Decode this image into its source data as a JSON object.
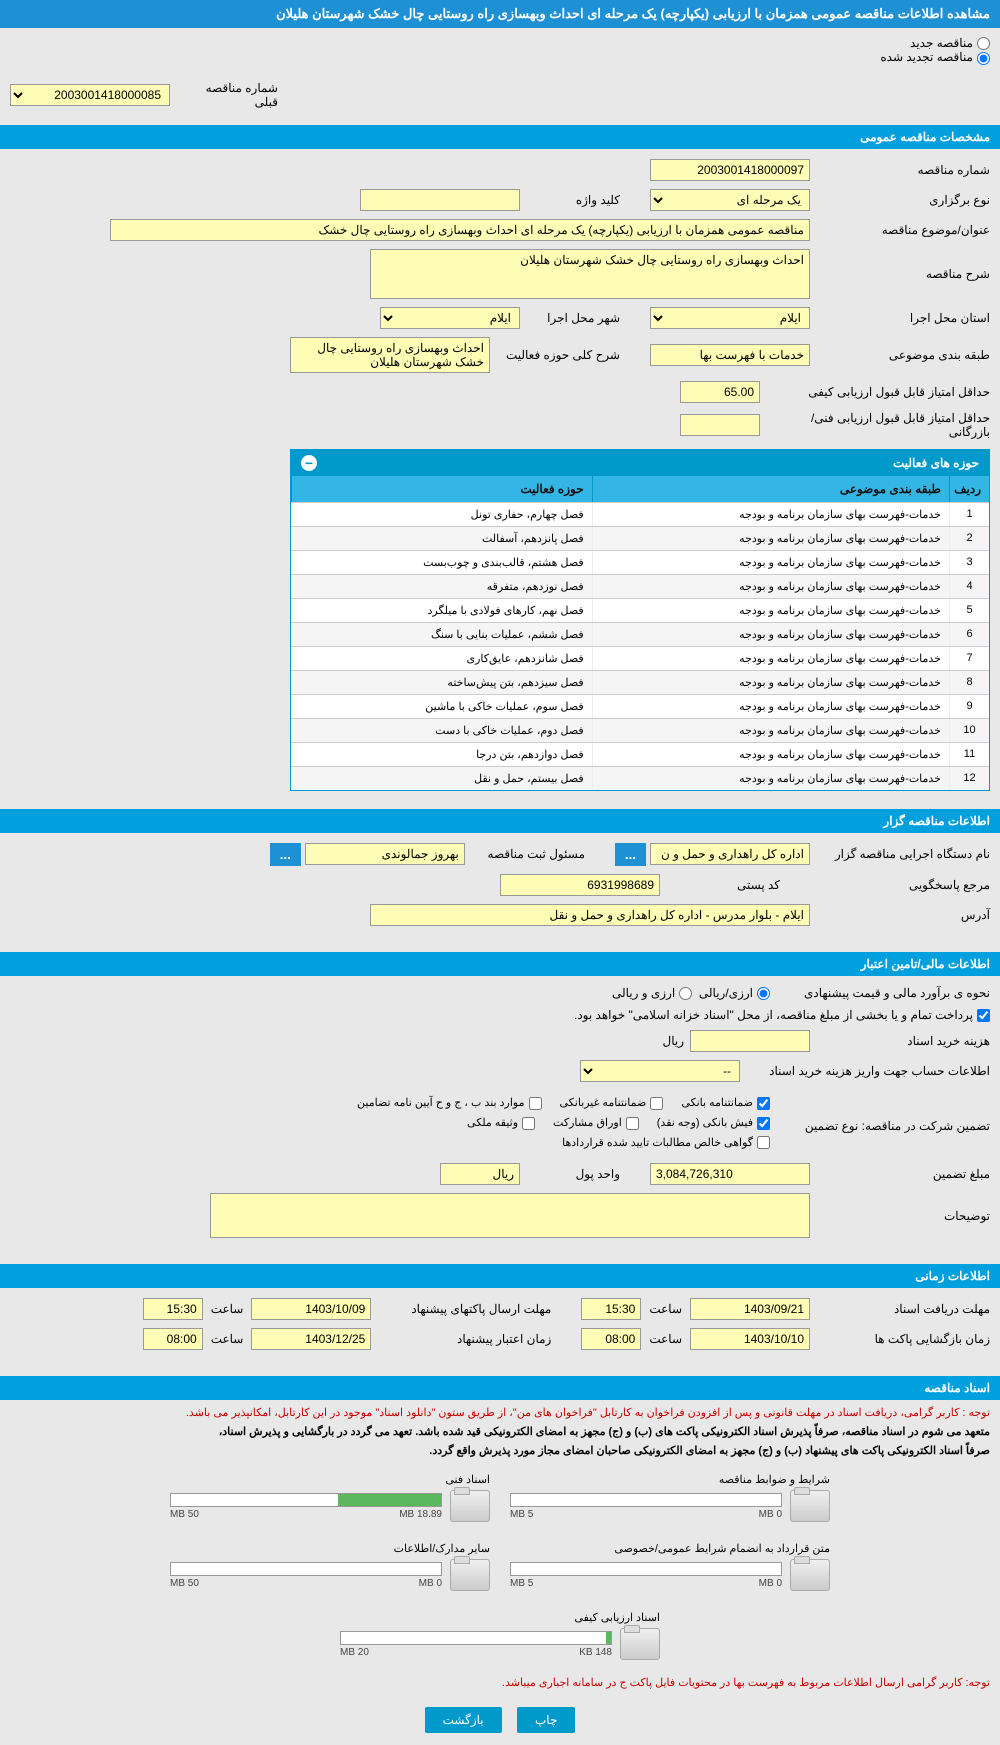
{
  "header_title": "مشاهده اطلاعات مناقصه عمومی همزمان با ارزیابی (یکپارچه) یک مرحله ای احداث وبهسازی راه روستایی چال خشک شهرستان هلیلان",
  "top_radios": {
    "new_label": "مناقصه جدید",
    "renewed_label": "مناقصه تجدید شده"
  },
  "prev_number": {
    "label": "شماره مناقصه قبلی",
    "value": "2003001418000085"
  },
  "sections": {
    "general": "مشخصات مناقصه عمومی",
    "gozar": "اطلاعات مناقصه گزار",
    "finance": "اطلاعات مالی/تامین اعتبار",
    "time": "اطلاعات زمانی",
    "docs": "اسناد مناقصه"
  },
  "general": {
    "number_label": "شماره مناقصه",
    "number_value": "2003001418000097",
    "type_label": "نوع برگزاری",
    "type_value": "یک مرحله ای",
    "keyword_label": "کلید واژه",
    "keyword_value": "",
    "subject_label": "عنوان/موضوع مناقصه",
    "subject_value": "مناقصه عمومی همزمان با ارزیابی (یکپارچه) یک مرحله ای احداث وبهسازی راه روستایی چال خشک",
    "desc_label": "شرح مناقصه",
    "desc_value": "احداث وبهسازی راه روستایی چال خشک شهرستان هلیلان",
    "province_label": "استان محل اجرا",
    "province_value": "ایلام",
    "city_label": "شهر محل اجرا",
    "city_value": "ایلام",
    "category_label": "طبقه بندی موضوعی",
    "category_value": "خدمات با فهرست بها",
    "scope_label": "شرح کلی حوزه فعالیت",
    "scope_value": "احداث وبهسازی راه روستایی چال خشک شهرستان هلیلان",
    "min_quality_label": "حداقل امتیاز قابل قبول ارزیابی کیفی",
    "min_quality_value": "65.00",
    "min_tech_label": "حداقل امتیاز قابل قبول ارزیابی فنی/بازرگانی",
    "min_tech_value": ""
  },
  "activity_grid": {
    "title": "حوزه های فعالیت",
    "col_idx": "ردیف",
    "col_cat": "طبقه بندی موضوعی",
    "col_act": "حوزه فعالیت",
    "rows": [
      {
        "i": "1",
        "cat": "خدمات-فهرست بهای سازمان برنامه و بودجه",
        "act": "فصل چهارم، حفاری تونل"
      },
      {
        "i": "2",
        "cat": "خدمات-فهرست بهای سازمان برنامه و بودجه",
        "act": "فصل پانزدهم، آسفالت"
      },
      {
        "i": "3",
        "cat": "خدمات-فهرست بهای سازمان برنامه و بودجه",
        "act": "فصل هشتم، قالب‌بندی و چوب‌بست"
      },
      {
        "i": "4",
        "cat": "خدمات-فهرست بهای سازمان برنامه و بودجه",
        "act": "فصل نوزدهم، متفرقه"
      },
      {
        "i": "5",
        "cat": "خدمات-فهرست بهای سازمان برنامه و بودجه",
        "act": "فصل نهم، کارهای فولادی با میلگرد"
      },
      {
        "i": "6",
        "cat": "خدمات-فهرست بهای سازمان برنامه و بودجه",
        "act": "فصل ششم، عملیات بنایی با سنگ"
      },
      {
        "i": "7",
        "cat": "خدمات-فهرست بهای سازمان برنامه و بودجه",
        "act": "فصل شانزدهم، عایق‌کاری"
      },
      {
        "i": "8",
        "cat": "خدمات-فهرست بهای سازمان برنامه و بودجه",
        "act": "فصل سیزدهم، بتن پیش‌ساخته"
      },
      {
        "i": "9",
        "cat": "خدمات-فهرست بهای سازمان برنامه و بودجه",
        "act": "فصل سوم، عملیات خاکی با ماشین"
      },
      {
        "i": "10",
        "cat": "خدمات-فهرست بهای سازمان برنامه و بودجه",
        "act": "فصل دوم، عملیات خاکی با دست"
      },
      {
        "i": "11",
        "cat": "خدمات-فهرست بهای سازمان برنامه و بودجه",
        "act": "فصل دوازدهم، بتن درجا"
      },
      {
        "i": "12",
        "cat": "خدمات-فهرست بهای سازمان برنامه و بودجه",
        "act": "فصل بیستم، حمل و نقل"
      }
    ]
  },
  "gozar": {
    "org_label": "نام دستگاه اجرایی مناقصه گزار",
    "org_value": "اداره کل راهداری و حمل و ن",
    "reg_resp_label": "مسئول ثبت مناقصه",
    "reg_resp_value": "بهروز جمالوندی",
    "answer_ref_label": "مرجع پاسخگویی",
    "postal_label": "کد پستی",
    "postal_value": "6931998689",
    "address_label": "آدرس",
    "address_value": "ایلام - بلوار مدرس - اداره کل راهداری و حمل و نقل"
  },
  "finance": {
    "method_label": "نحوه ی برآورد مالی و قیمت پیشنهادی",
    "opt1": "ارزی/ریالی",
    "opt2": "ارزی و ریالی",
    "note": "پرداخت تمام و یا بخشی از مبلغ مناقصه، از محل \"اسناد خزانه اسلامی\" خواهد بود.",
    "doc_cost_label": "هزینه خرید اسناد",
    "doc_cost_value": "",
    "rial": "ریال",
    "account_label": "اطلاعات حساب جهت واریز هزینه خرید اسناد",
    "account_value": "--",
    "guarantee_type_label": "تضمین شرکت در مناقصه:   نوع تضمین",
    "chk": {
      "bank_guarantee": "ضمانتنامه بانکی",
      "nonbank_guarantee": "ضمانتنامه غیربانکی",
      "clauses": "موارد بند ب ، ج و ح آیین نامه تضامین",
      "bank_receipt": "فیش بانکی (وجه نقد)",
      "securities": "اوراق مشارکت",
      "property_deed": "وثیقه ملکی",
      "contract_claims": "گواهی خالص مطالبات تایید شده قراردادها"
    },
    "amount_label": "مبلغ تضمین",
    "amount_value": "3,084,726,310",
    "currency_label": "واحد پول",
    "currency_value": "ریال",
    "explanation_label": "توضیحات",
    "explanation_value": ""
  },
  "time": {
    "receive_label": "مهلت دریافت اسناد",
    "receive_date": "1403/09/21",
    "receive_time": "15:30",
    "open_label": "زمان بازگشایی پاکت ها",
    "open_date": "1403/10/10",
    "open_time": "08:00",
    "submit_label": "مهلت ارسال پاکتهای پیشنهاد",
    "submit_date": "1403/10/09",
    "submit_time": "15:30",
    "validity_label": "زمان اعتبار پیشنهاد",
    "validity_date": "1403/12/25",
    "validity_time": "08:00",
    "hour": "ساعت"
  },
  "docs": {
    "warn1": "توجه : کاربر گرامی، دریافت اسناد در مهلت قانونی و پس از افزودن فراخوان به کارتابل \"فراخوان های من\"، از طریق ستون \"دانلود اسناد\" موجود در این کارتابل، امکانپذیر می باشد.",
    "warn2a": "متعهد می شوم در اسناد مناقصه، صرفاً پذیرش اسناد الکترونیکی پاکت های (ب) و (ج) مجهز به امضای الکترونیکی قید شده باشد. تعهد می گردد در بارگشایی و پذیرش اسناد،",
    "warn2b": "صرفاً اسناد الکترونیکی پاکت های پیشنهاد (ب) و (ج) مجهز به امضای الکترونیکی صاحبان امضای مجاز مورد پذیرش واقع گردد.",
    "files": [
      {
        "title": "شرایط و ضوابط مناقصه",
        "used": "0 MB",
        "max": "5 MB",
        "pct": 0
      },
      {
        "title": "اسناد فنی",
        "used": "18.89 MB",
        "max": "50 MB",
        "pct": 38
      },
      {
        "title": "متن قرارداد به انضمام شرایط عمومی/خصوصی",
        "used": "0 MB",
        "max": "5 MB",
        "pct": 0
      },
      {
        "title": "سایر مدارک/اطلاعات",
        "used": "0 MB",
        "max": "50 MB",
        "pct": 0
      },
      {
        "title": "اسناد ارزیابی کیفی",
        "used": "148 KB",
        "max": "20 MB",
        "pct": 2
      }
    ],
    "warn3": "توجه: کاربر گرامی ارسال اطلاعات مربوط به فهرست بها در محتویات فایل پاکت ج در سامانه اجباری میباشد."
  },
  "footer": {
    "print": "چاپ",
    "back": "بازگشت"
  },
  "colors": {
    "accent": "#0099cc",
    "header": "#1e90d4",
    "input": "#fdfdb5"
  }
}
